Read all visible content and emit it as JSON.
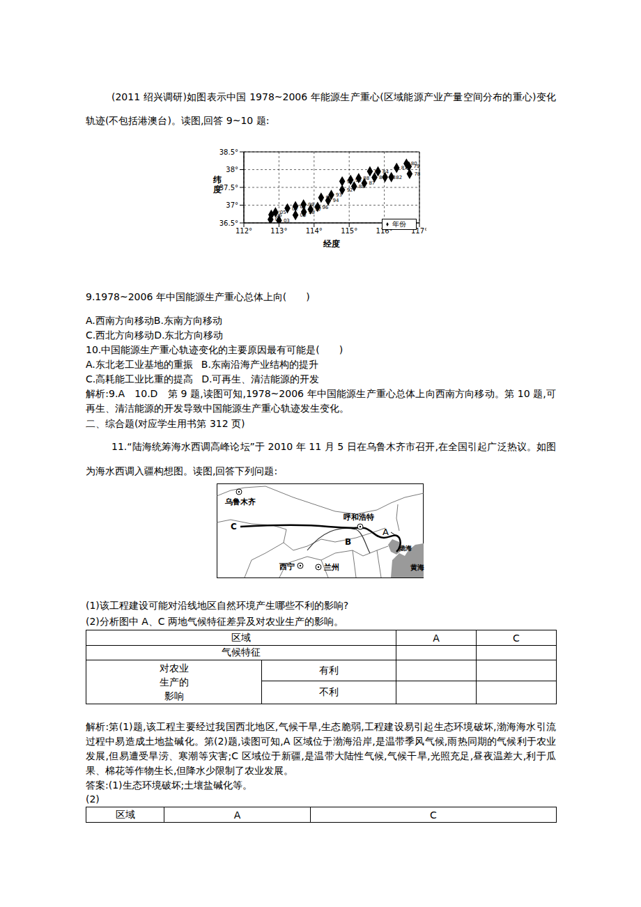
{
  "document": {
    "intro": "(2011 绍兴调研)如图表示中国 1978~2006 年能源生产重心(区域能源产业产量空间分布的重心)变化轨迹(不包括港澳台)。读图,回答 9~10 题:",
    "q9": {
      "stem": "9.1978~2006 年中国能源生产重心总体上向(　　)",
      "options": [
        "A.西南方向移动",
        "B.东南方向移动",
        "C.西北方向移动",
        "D.东北方向移动"
      ]
    },
    "q10": {
      "stem": "10.中国能源生产重心轨迹变化的主要原因最有可能是(　　)",
      "options": [
        "A.东北老工业基地的重振",
        "B.东南沿海产业结构的提升",
        "C.高耗能工业比重的提高",
        "D.可再生、清洁能源的开发"
      ]
    },
    "analysis1": "解析:9.A　10.D　第 9 题,读图可知,1978~2006 年中国能源生产重心总体上向西南方向移动。第 10 题,可再生、清洁能源的开发导致中国能源生产重心轨迹发生变化。",
    "section2": "二、综合题(对应学生用书第 312 页)",
    "q11": "11.“陆海统筹海水西调高峰论坛”于 2010 年 11 月 5 日在乌鲁木齐市召开,在全国引起广泛热议。如图为海水西调入疆构想图。读图,回答下列问题:",
    "map": {
      "cities": [
        "乌鲁木齐",
        "呼和浩特",
        "西宁",
        "兰州"
      ],
      "points": [
        "A",
        "B",
        "C"
      ],
      "seas": [
        "渤海",
        "黄海"
      ]
    },
    "q11_1": "(1)该工程建设可能对沿线地区自然环境产生哪些不利的影响?",
    "q11_2": "(2)分析图中 A、C 两地气候特征差异及对农业生产的影响。",
    "table1": {
      "header": [
        "区域",
        "A",
        "C"
      ],
      "row1": "气候特征",
      "group": [
        "对农业",
        "生产的",
        "影响"
      ],
      "sub": [
        "有利",
        "不利"
      ]
    },
    "analysis2": "解析:第(1)题,该工程主要经过我国西北地区,气候干旱,生态脆弱,工程建设易引起生态环境破坏,渤海海水引流过程中易造成土地盐碱化。第(2)题,读图可知,A 区域位于渤海沿岸,是温带季风气候,雨热同期的气候利于农业发展,但易遭受旱涝、寒潮等灾害;C 区域位于新疆,是温带大陆性气候,气候干旱,光照充足,昼夜温差大,利于瓜果、棉花等作物生长,但降水少限制了农业发展。",
    "answer1": "答案:(1)生态环境破坏;土壤盐碱化等。",
    "answer2": "(2)",
    "table2": {
      "header": [
        "区域",
        "A",
        "C"
      ]
    }
  },
  "chart_data": {
    "type": "scatter",
    "x_label": "经度",
    "y_label": "纬度",
    "xlim": [
      112,
      117
    ],
    "xticks": [
      {
        "value": 112,
        "label": "112°"
      },
      {
        "value": 113,
        "label": "113°"
      },
      {
        "value": 114,
        "label": "114°"
      },
      {
        "value": 115,
        "label": "115°"
      },
      {
        "value": 116,
        "label": "116°"
      },
      {
        "value": 117,
        "label": "117°"
      }
    ],
    "ylim": [
      36.5,
      38.5
    ],
    "yticks": [
      {
        "value": 36.5,
        "label": "36.5°"
      },
      {
        "value": 37,
        "label": "37°"
      },
      {
        "value": 37.5,
        "label": "37.5°"
      },
      {
        "value": 38,
        "label": "38°"
      },
      {
        "value": 38.5,
        "label": "38.5°"
      }
    ],
    "grid": true,
    "legend": "bottom-right",
    "marker": "diamond",
    "series": [
      {
        "name": "年份",
        "color": "#000000",
        "x": [
          116.72,
          116.7,
          116.63,
          116.35,
          116.2,
          116.02,
          115.82,
          115.59,
          115.72,
          115.43,
          115.27,
          115.14,
          115.04,
          114.8,
          114.8,
          114.49,
          114.4,
          114.2,
          114.1,
          113.9,
          113.71,
          113.7,
          113.47,
          113.47,
          113.24,
          113.0,
          112.76,
          112.9,
          112.78
        ],
        "values": [
          37.88,
          38.09,
          38.17,
          38.05,
          37.79,
          37.79,
          37.95,
          37.95,
          37.78,
          37.62,
          37.76,
          37.53,
          37.71,
          37.67,
          37.43,
          37.29,
          37.13,
          37.21,
          36.95,
          36.88,
          36.81,
          37.02,
          36.72,
          36.97,
          36.91,
          36.57,
          36.6,
          36.8,
          36.73
        ],
        "labels": [
          "78",
          "79",
          "80",
          "81",
          "82",
          "83",
          "84",
          "85",
          "86",
          "87",
          "88",
          "89",
          "90",
          "91",
          "92",
          "93",
          "94",
          "95",
          "96",
          "97",
          "98",
          "99",
          "00",
          "01",
          "02",
          "03",
          "04",
          "05",
          "06"
        ]
      }
    ]
  }
}
